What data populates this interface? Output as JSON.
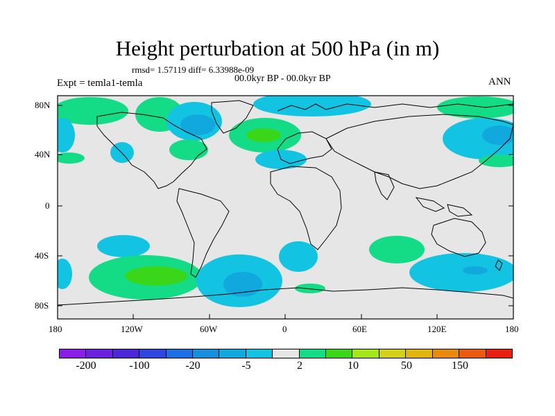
{
  "title": "Height perturbation at 500 hPa (in m)",
  "stats": "rmsd= 1.57119 diff= 6.33988e-09",
  "period": "00.0kyr BP - 00.0kyr BP",
  "experiment": "Expt = temla1-temla",
  "season": "ANN",
  "lat_labels": [
    "80N",
    "40N",
    "0",
    "40S",
    "80S"
  ],
  "lon_labels": [
    "180",
    "120W",
    "60W",
    "0",
    "60E",
    "120E",
    "180"
  ],
  "colorbar": {
    "colors": [
      "#8a1ee6",
      "#6a22df",
      "#4b27d8",
      "#2f45e0",
      "#1e6fe6",
      "#168fdc",
      "#11a8de",
      "#12c4e2",
      "#e6e6e6",
      "#14dc86",
      "#3ad61a",
      "#a8e61c",
      "#d2d21a",
      "#e2b412",
      "#e88a10",
      "#ea5a10",
      "#e82010"
    ],
    "labels": [
      "-200",
      "-100",
      "-20",
      "-5",
      "2",
      "10",
      "50",
      "150"
    ]
  },
  "field_colors": {
    "neutral": "#e6e6e6",
    "cyan": "#12c4e2",
    "lightblue": "#11a8de",
    "blue": "#168fdc",
    "teal": "#14dc86",
    "green": "#3ad61a"
  }
}
